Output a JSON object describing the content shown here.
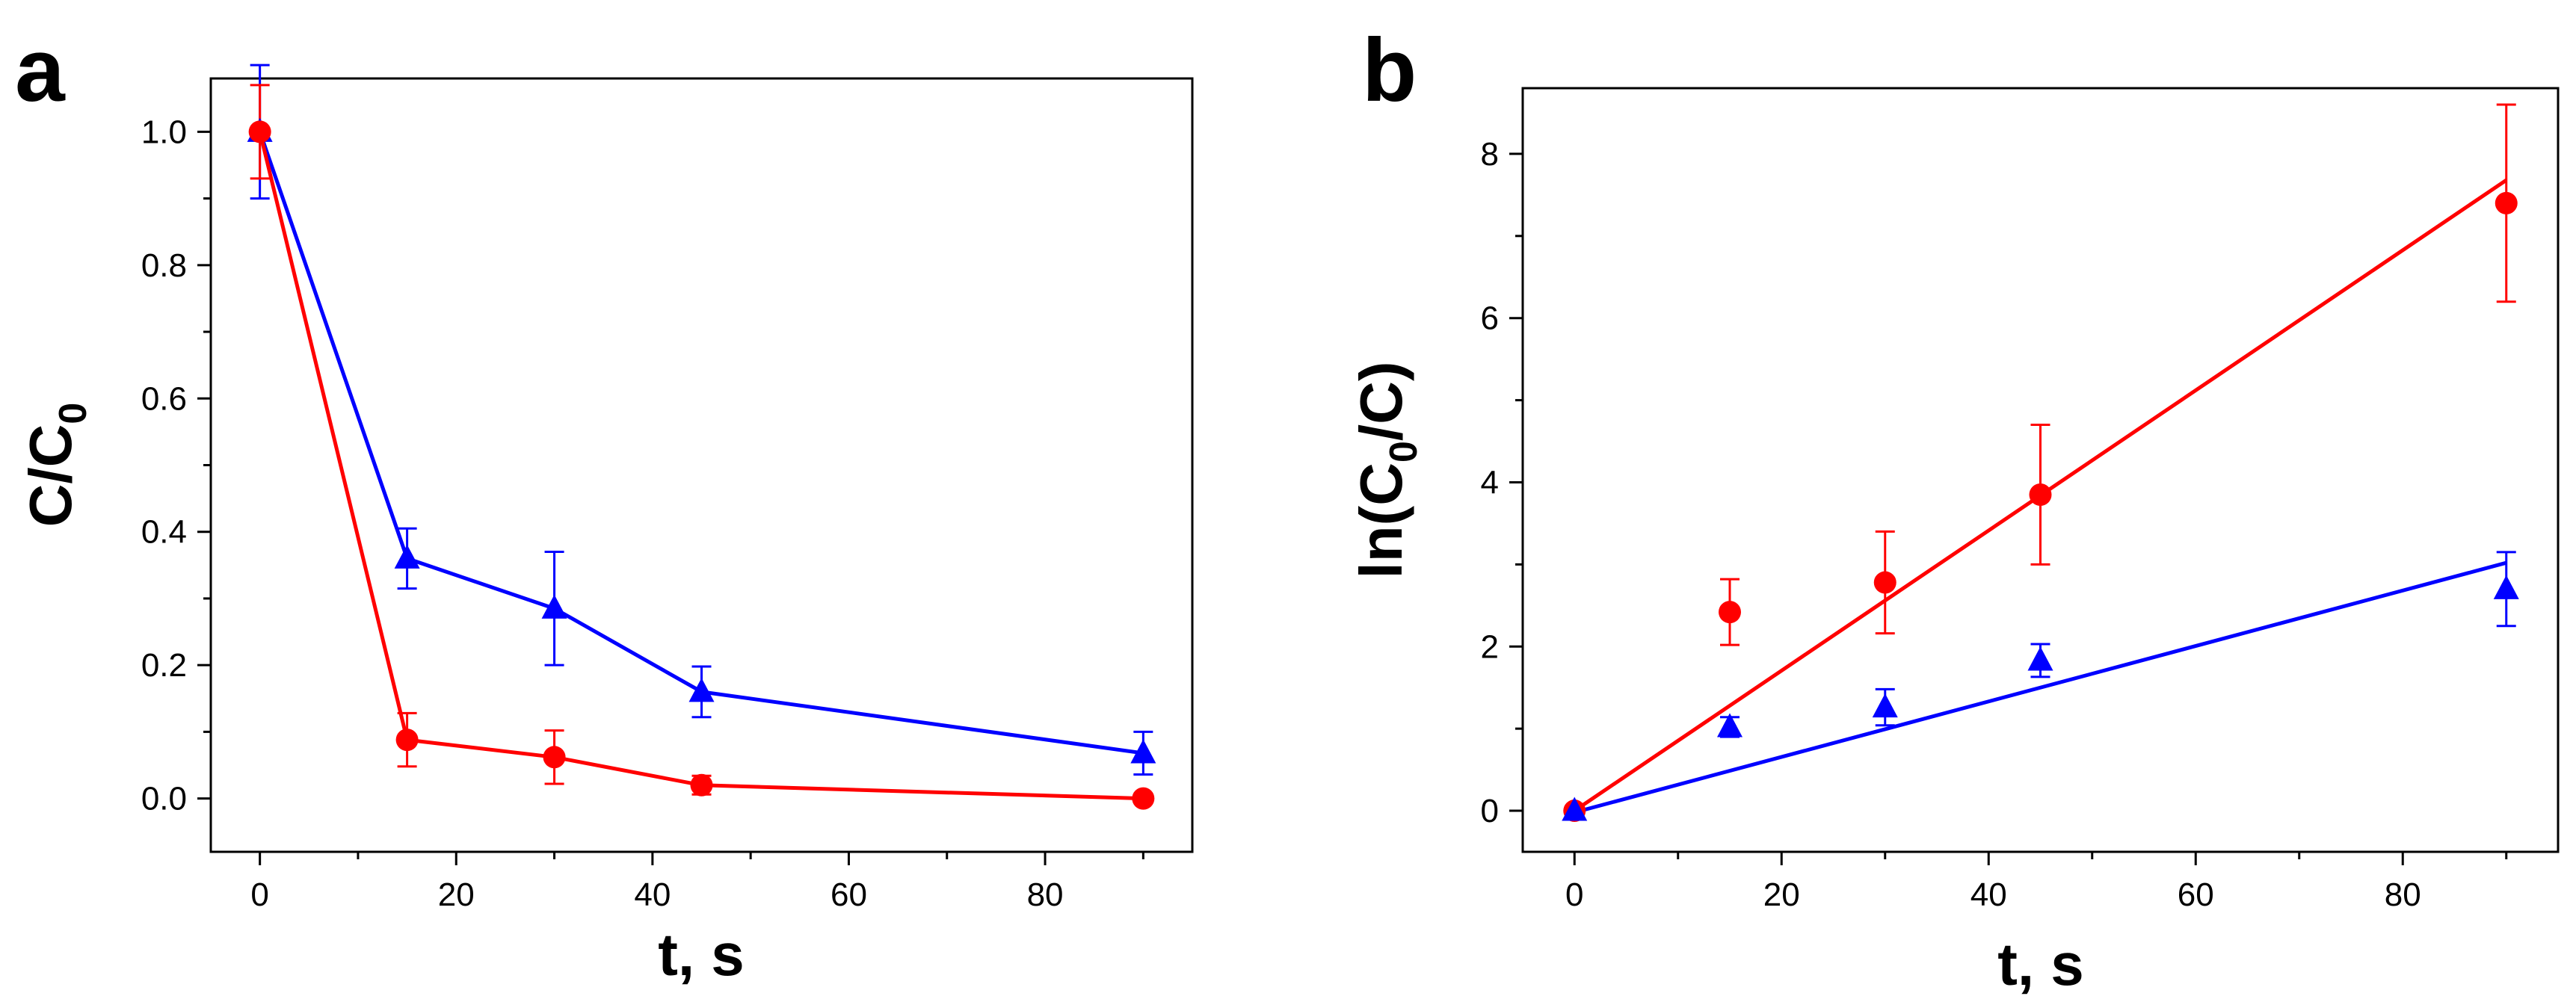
{
  "chart_data": [
    {
      "type": "line",
      "panel": "a",
      "xlabel": "t, s",
      "ylabel_main": "C/C",
      "ylabel_sub": "0",
      "xlim": [
        -5,
        95
      ],
      "ylim": [
        -0.08,
        1.08
      ],
      "xticks": [
        0,
        20,
        40,
        60,
        80
      ],
      "xtick_labels": [
        "0",
        "20",
        "40",
        "60",
        "80"
      ],
      "xminor": [
        10,
        30,
        50,
        70,
        90
      ],
      "yticks": [
        0.0,
        0.2,
        0.4,
        0.6,
        0.8,
        1.0
      ],
      "ytick_labels": [
        "0.0",
        "0.2",
        "0.4",
        "0.6",
        "0.8",
        "1.0"
      ],
      "yminor": [
        0.1,
        0.3,
        0.5,
        0.7,
        0.9
      ],
      "series": [
        {
          "name": "blue",
          "color": "#0000ff",
          "marker": "triangle",
          "connect": true,
          "x": [
            0,
            15,
            30,
            45,
            90
          ],
          "y": [
            1.0,
            0.36,
            0.285,
            0.16,
            0.068
          ],
          "err": [
            0.1,
            0.045,
            0.085,
            0.038,
            0.032
          ]
        },
        {
          "name": "red",
          "color": "#ff0000",
          "marker": "circle",
          "connect": true,
          "x": [
            0,
            15,
            30,
            45,
            90
          ],
          "y": [
            1.0,
            0.088,
            0.062,
            0.02,
            0.0
          ],
          "err": [
            0.07,
            0.04,
            0.04,
            0.014,
            0.0
          ]
        }
      ]
    },
    {
      "type": "scatter",
      "panel": "b",
      "xlabel": "t, s",
      "ylabel_main": "ln(C",
      "ylabel_sub": "0",
      "ylabel_tail": "/C)",
      "xlim": [
        -5,
        95
      ],
      "ylim": [
        -0.5,
        8.8
      ],
      "xticks": [
        0,
        20,
        40,
        60,
        80
      ],
      "xtick_labels": [
        "0",
        "20",
        "40",
        "60",
        "80"
      ],
      "xminor": [
        10,
        30,
        50,
        70,
        90
      ],
      "yticks": [
        0,
        2,
        4,
        6,
        8
      ],
      "ytick_labels": [
        "0",
        "2",
        "4",
        "6",
        "8"
      ],
      "yminor": [
        1,
        3,
        5,
        7
      ],
      "series": [
        {
          "name": "red",
          "color": "#ff0000",
          "marker": "circle",
          "connect": false,
          "x": [
            0,
            15,
            30,
            45,
            90
          ],
          "y": [
            0.0,
            2.42,
            2.78,
            3.85,
            7.4
          ],
          "err": [
            0.0,
            0.4,
            0.62,
            0.85,
            1.2
          ]
        },
        {
          "name": "blue",
          "color": "#0000ff",
          "marker": "triangle",
          "connect": false,
          "x": [
            0,
            15,
            30,
            45,
            90
          ],
          "y": [
            0.0,
            1.02,
            1.26,
            1.83,
            2.7
          ],
          "err": [
            0.0,
            0.12,
            0.22,
            0.2,
            0.45
          ]
        }
      ],
      "fits": [
        {
          "name": "red-fit",
          "color": "#ff0000",
          "x": [
            0,
            90
          ],
          "y": [
            0.0,
            7.68
          ]
        },
        {
          "name": "blue-fit",
          "color": "#0000ff",
          "x": [
            0,
            90
          ],
          "y": [
            -0.02,
            3.02
          ]
        }
      ]
    }
  ]
}
